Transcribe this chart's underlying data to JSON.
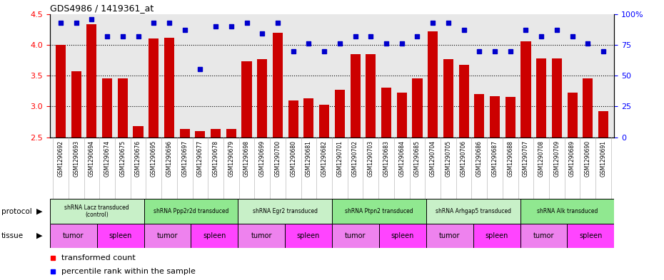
{
  "title": "GDS4986 / 1419361_at",
  "samples": [
    "GSM1290692",
    "GSM1290693",
    "GSM1290694",
    "GSM1290674",
    "GSM1290675",
    "GSM1290676",
    "GSM1290695",
    "GSM1290696",
    "GSM1290697",
    "GSM1290677",
    "GSM1290678",
    "GSM1290679",
    "GSM1290698",
    "GSM1290699",
    "GSM1290700",
    "GSM1290680",
    "GSM1290681",
    "GSM1290682",
    "GSM1290701",
    "GSM1290702",
    "GSM1290703",
    "GSM1290683",
    "GSM1290684",
    "GSM1290685",
    "GSM1290704",
    "GSM1290705",
    "GSM1290706",
    "GSM1290686",
    "GSM1290687",
    "GSM1290688",
    "GSM1290707",
    "GSM1290708",
    "GSM1290709",
    "GSM1290689",
    "GSM1290690",
    "GSM1290691"
  ],
  "bar_values": [
    4.0,
    3.57,
    4.33,
    3.45,
    3.45,
    2.68,
    4.1,
    4.12,
    2.63,
    2.6,
    2.63,
    2.63,
    3.73,
    3.77,
    4.2,
    3.1,
    3.13,
    3.03,
    3.27,
    3.85,
    3.85,
    3.3,
    3.22,
    3.46,
    4.22,
    3.77,
    3.67,
    3.2,
    3.17,
    3.16,
    4.06,
    3.78,
    3.78,
    3.22,
    3.46,
    2.92
  ],
  "percentile_values_pct": [
    93,
    93,
    96,
    82,
    82,
    82,
    93,
    93,
    87,
    55,
    90,
    90,
    93,
    84,
    93,
    70,
    76,
    70,
    76,
    82,
    82,
    76,
    76,
    82,
    93,
    93,
    87,
    70,
    70,
    70,
    87,
    82,
    87,
    82,
    76,
    70
  ],
  "protocols": [
    {
      "label": "shRNA Lacz transduced\n(control)",
      "start": 0,
      "end": 6,
      "color": "#c8f0c8"
    },
    {
      "label": "shRNA Ppp2r2d transduced",
      "start": 6,
      "end": 12,
      "color": "#90e890"
    },
    {
      "label": "shRNA Egr2 transduced",
      "start": 12,
      "end": 18,
      "color": "#c8f0c8"
    },
    {
      "label": "shRNA Ptpn2 transduced",
      "start": 18,
      "end": 24,
      "color": "#90e890"
    },
    {
      "label": "shRNA Arhgap5 transduced",
      "start": 24,
      "end": 30,
      "color": "#c8f0c8"
    },
    {
      "label": "shRNA Alk transduced",
      "start": 30,
      "end": 36,
      "color": "#90e890"
    }
  ],
  "tissues": [
    {
      "label": "tumor",
      "start": 0,
      "end": 3
    },
    {
      "label": "spleen",
      "start": 3,
      "end": 6
    },
    {
      "label": "tumor",
      "start": 6,
      "end": 9
    },
    {
      "label": "spleen",
      "start": 9,
      "end": 12
    },
    {
      "label": "tumor",
      "start": 12,
      "end": 15
    },
    {
      "label": "spleen",
      "start": 15,
      "end": 18
    },
    {
      "label": "tumor",
      "start": 18,
      "end": 21
    },
    {
      "label": "spleen",
      "start": 21,
      "end": 24
    },
    {
      "label": "tumor",
      "start": 24,
      "end": 27
    },
    {
      "label": "spleen",
      "start": 27,
      "end": 30
    },
    {
      "label": "tumor",
      "start": 30,
      "end": 33
    },
    {
      "label": "spleen",
      "start": 33,
      "end": 36
    }
  ],
  "tumor_color": "#ee82ee",
  "spleen_color": "#ff44ff",
  "ylim": [
    2.5,
    4.5
  ],
  "yticks": [
    2.5,
    3.0,
    3.5,
    4.0,
    4.5
  ],
  "right_yticks": [
    0,
    25,
    50,
    75,
    100
  ],
  "right_ytick_labels": [
    "0",
    "25",
    "50",
    "75",
    "100%"
  ],
  "bar_color": "#cc0000",
  "percentile_color": "#0000cc",
  "plot_bg_color": "#e8e8e8",
  "label_bg_color": "#c8c8c8"
}
